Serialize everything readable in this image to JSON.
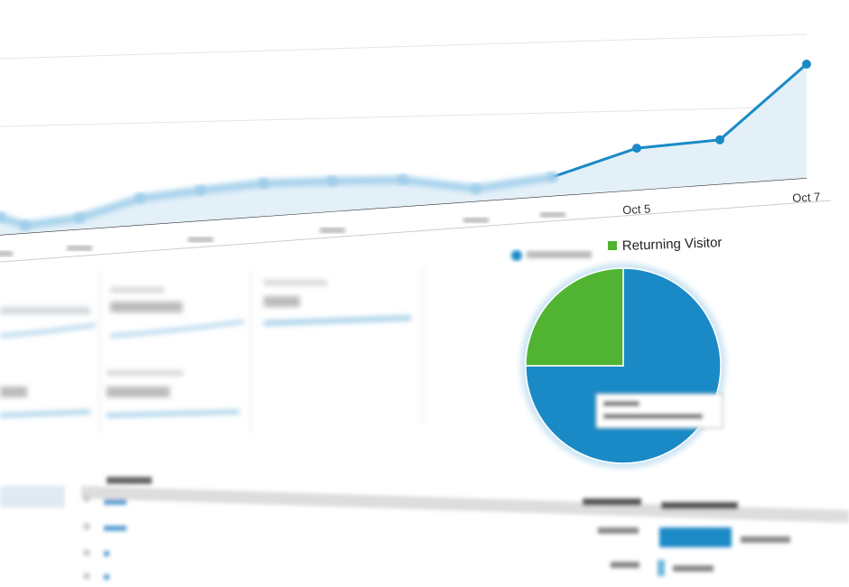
{
  "colors": {
    "accent": "#1a8ac6",
    "area": "#e3f0f8",
    "green": "#50b432",
    "grid": "#e6e6e6"
  },
  "chart_data": [
    {
      "type": "area",
      "x_labels": [
        "",
        "",
        "",
        "",
        "",
        "",
        "",
        "",
        "",
        "",
        "Oct 5",
        "",
        "Oct 7"
      ],
      "values": [
        14,
        6,
        9,
        21,
        24,
        26,
        24,
        21,
        10,
        15,
        33,
        35,
        90
      ],
      "grid": true,
      "series_color": "#1a8ac6"
    },
    {
      "type": "pie",
      "legend": [
        "",
        "Returning Visitor"
      ],
      "legend_placement": "top",
      "slices": [
        {
          "name": "",
          "value": 75,
          "color": "#1a8ac6"
        },
        {
          "name": "Returning Visitor",
          "value": 25,
          "color": "#50b432"
        }
      ]
    }
  ]
}
